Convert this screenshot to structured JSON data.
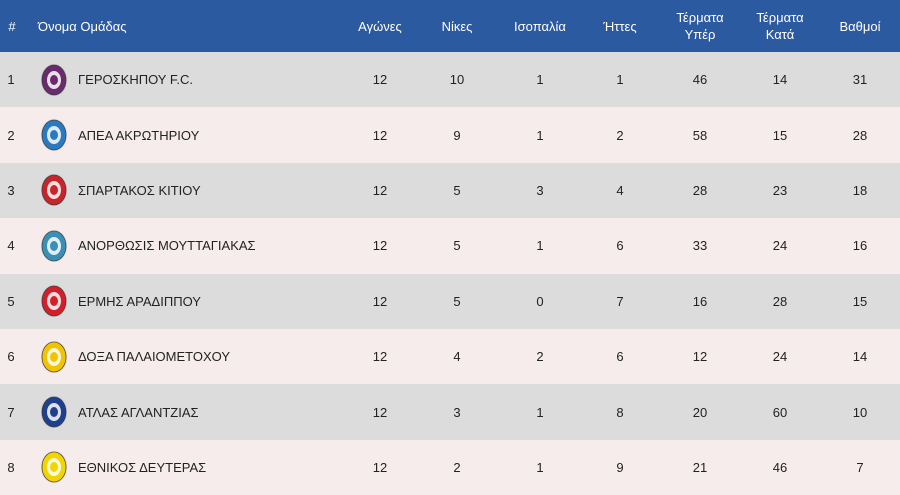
{
  "header": {
    "num": "#",
    "team": "Όνομα Ομάδας",
    "played": "Αγώνες",
    "wins": "Νίκες",
    "draws": "Ισοπαλία",
    "losses": "Ήττες",
    "goals_for": "Τέρματα\nΥπέρ",
    "goals_against": "Τέρματα\nΚατά",
    "points": "Βαθμοί"
  },
  "rows": [
    {
      "pos": "1",
      "team": "ΓΕΡΟΣΚΗΠΟΥ F.C.",
      "played": "12",
      "wins": "10",
      "draws": "1",
      "losses": "1",
      "gf": "46",
      "ga": "14",
      "pts": "31",
      "logo_color": "#6a2b6e",
      "logo_icon": "geroskipou-crest-icon"
    },
    {
      "pos": "2",
      "team": "ΑΠΕΑ ΑΚΡΩΤΗΡΙΟΥ",
      "played": "12",
      "wins": "9",
      "draws": "1",
      "losses": "2",
      "gf": "58",
      "ga": "15",
      "pts": "28",
      "logo_color": "#2a7ac2",
      "logo_icon": "flamingo-crest-icon"
    },
    {
      "pos": "3",
      "team": "ΣΠΑΡΤΑΚΟΣ ΚΙΤΙΟΥ",
      "played": "12",
      "wins": "5",
      "draws": "3",
      "losses": "4",
      "gf": "28",
      "ga": "23",
      "pts": "18",
      "logo_color": "#c8242b",
      "logo_icon": "spartakos-crest-icon"
    },
    {
      "pos": "4",
      "team": "ΑΝΟΡΘΩΣΙΣ ΜΟΥΤΤΑΓΙΑΚΑΣ",
      "played": "12",
      "wins": "5",
      "draws": "1",
      "losses": "6",
      "gf": "33",
      "ga": "24",
      "pts": "16",
      "logo_color": "#3a8fb7",
      "logo_icon": "anorthosis-crest-icon"
    },
    {
      "pos": "5",
      "team": "ΕΡΜΗΣ ΑΡΑΔΙΠΠΟΥ",
      "played": "12",
      "wins": "5",
      "draws": "0",
      "losses": "7",
      "gf": "16",
      "ga": "28",
      "pts": "15",
      "logo_color": "#d21f2a",
      "logo_icon": "ermis-crest-icon"
    },
    {
      "pos": "6",
      "team": "ΔΟΞΑ ΠΑΛΑΙΟΜΕΤΟΧΟΥ",
      "played": "12",
      "wins": "4",
      "draws": "2",
      "losses": "6",
      "gf": "12",
      "ga": "24",
      "pts": "14",
      "logo_color": "#f2c400",
      "logo_icon": "doxa-crest-icon"
    },
    {
      "pos": "7",
      "team": "ΑΤΛΑΣ ΑΓΛΑΝΤΖΙΑΣ",
      "played": "12",
      "wins": "3",
      "draws": "1",
      "losses": "8",
      "gf": "20",
      "ga": "60",
      "pts": "10",
      "logo_color": "#1f3f8f",
      "logo_icon": "atlas-crest-icon"
    },
    {
      "pos": "8",
      "team": "ΕΘΝΙΚΟΣ ΔΕΥΤΕΡΑΣ",
      "played": "12",
      "wins": "2",
      "draws": "1",
      "losses": "9",
      "gf": "21",
      "ga": "46",
      "pts": "7",
      "logo_color": "#f2d400",
      "logo_icon": "ethnikos-crest-icon"
    }
  ],
  "colors": {
    "header_bg": "#2c5aa0",
    "row_odd": "#dcdcdc",
    "row_even": "#f7ecec"
  }
}
